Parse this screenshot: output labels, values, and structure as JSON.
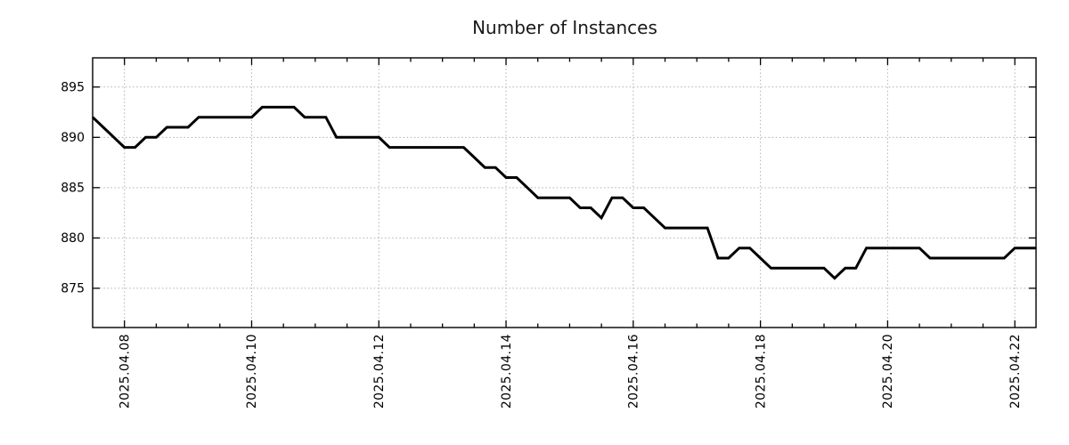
{
  "chart_data": {
    "type": "line",
    "title": "Number of Instances",
    "xlabel": "",
    "ylabel": "",
    "legend": "none",
    "grid": true,
    "ylim": [
      871.1,
      897.9
    ],
    "yticks": [
      875,
      880,
      885,
      890,
      895
    ],
    "x_start": "2025.04.07 12:00",
    "x_end": "2025.04.22 08:00",
    "x_total_hours": 356,
    "x_major_step_hours": 48,
    "x_minor_step_hours": 12,
    "xticks": [
      {
        "hour": 12,
        "label": "2025.04.08"
      },
      {
        "hour": 60,
        "label": "2025.04.10"
      },
      {
        "hour": 108,
        "label": "2025.04.12"
      },
      {
        "hour": 156,
        "label": "2025.04.14"
      },
      {
        "hour": 204,
        "label": "2025.04.16"
      },
      {
        "hour": 252,
        "label": "2025.04.18"
      },
      {
        "hour": 300,
        "label": "2025.04.20"
      },
      {
        "hour": 348,
        "label": "2025.04.22"
      }
    ],
    "series": [
      {
        "name": "instances",
        "start": "2025.04.07 12:00",
        "interval_hours": 4,
        "values": [
          892,
          891,
          890,
          889,
          889,
          890,
          890,
          891,
          891,
          891,
          892,
          892,
          892,
          892,
          892,
          892,
          893,
          893,
          893,
          893,
          892,
          892,
          892,
          890,
          890,
          890,
          890,
          890,
          889,
          889,
          889,
          889,
          889,
          889,
          889,
          889,
          888,
          887,
          887,
          886,
          886,
          885,
          884,
          884,
          884,
          884,
          883,
          883,
          882,
          884,
          884,
          883,
          883,
          882,
          881,
          881,
          881,
          881,
          881,
          878,
          878,
          879,
          879,
          878,
          877,
          877,
          877,
          877,
          877,
          877,
          876,
          877,
          877,
          879,
          879,
          879,
          879,
          879,
          879,
          878,
          878,
          878,
          878,
          878,
          878,
          878,
          878,
          879,
          879,
          879
        ]
      }
    ],
    "line_color": "#000000",
    "grid_color": "#b0b0b0",
    "axis_color": "#000000",
    "text_color": "#000000",
    "background_color": "#ffffff"
  }
}
